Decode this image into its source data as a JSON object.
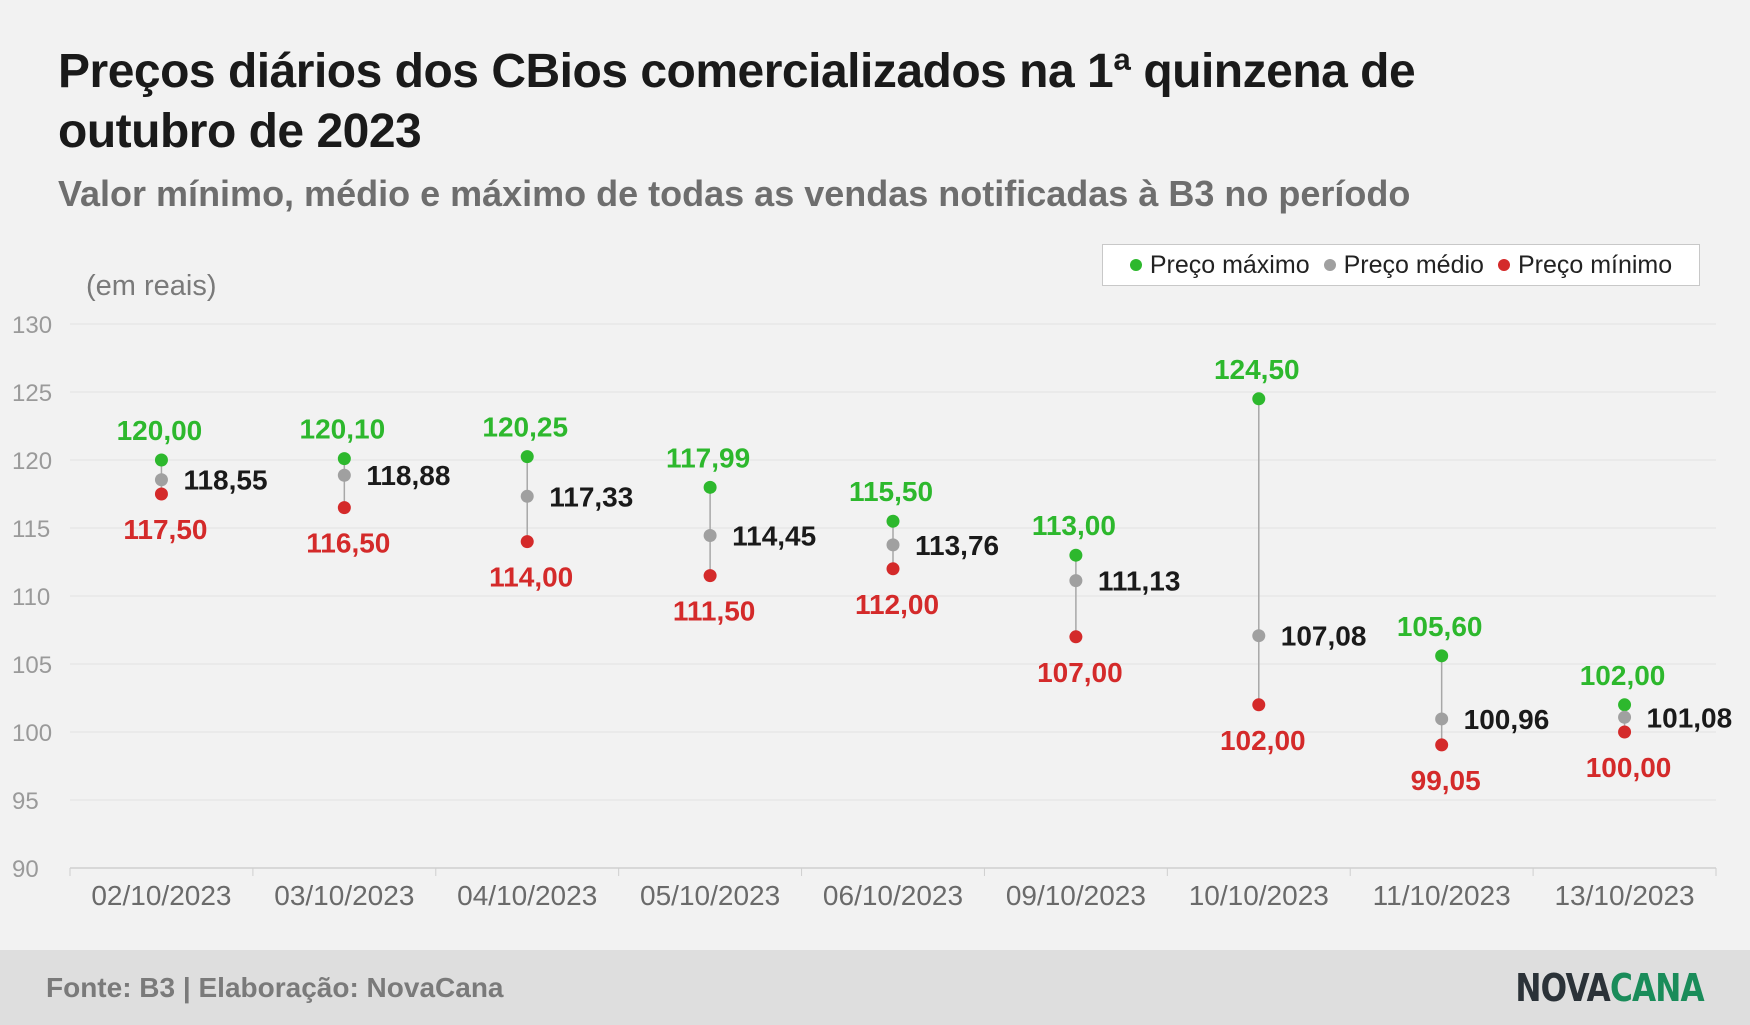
{
  "title": "Preços diários dos CBios comercializados na 1ª quinzena de outubro de 2023",
  "subtitle": "Valor mínimo, médio e máximo de todas as vendas notificadas à B3 no período",
  "unit_label": "(em reais)",
  "legend": [
    {
      "label": "Preço máximo",
      "color": "#2db82d"
    },
    {
      "label": "Preço médio",
      "color": "#a0a0a0"
    },
    {
      "label": "Preço mínimo",
      "color": "#d42a2a"
    }
  ],
  "footer": {
    "source": "Fonte: B3 | Elaboração: NovaCana",
    "logo_part1": "NOVA",
    "logo_part2": "CANA"
  },
  "chart_data": {
    "type": "scatter",
    "categories": [
      "02/10/2023",
      "03/10/2023",
      "04/10/2023",
      "05/10/2023",
      "06/10/2023",
      "09/10/2023",
      "10/10/2023",
      "11/10/2023",
      "13/10/2023"
    ],
    "ylim": [
      90,
      130
    ],
    "yticks": [
      90,
      95,
      100,
      105,
      110,
      115,
      120,
      125,
      130
    ],
    "grid": true,
    "legend_position": "top-right",
    "series": [
      {
        "name": "Preço máximo",
        "color": "#2db82d",
        "values": [
          120.0,
          120.1,
          120.25,
          117.99,
          115.5,
          113.0,
          124.5,
          105.6,
          102.0
        ],
        "labels": [
          "120,00",
          "120,10",
          "120,25",
          "117,99",
          "115,50",
          "113,00",
          "124,50",
          "105,60",
          "102,00"
        ]
      },
      {
        "name": "Preço médio",
        "color": "#a0a0a0",
        "values": [
          118.55,
          118.88,
          117.33,
          114.45,
          113.76,
          111.13,
          107.08,
          100.96,
          101.08
        ],
        "labels": [
          "118,55",
          "118,88",
          "117,33",
          "114,45",
          "113,76",
          "111,13",
          "107,08",
          "100,96",
          "101,08"
        ]
      },
      {
        "name": "Preço mínimo",
        "color": "#d42a2a",
        "values": [
          117.5,
          116.5,
          114.0,
          111.5,
          112.0,
          107.0,
          102.0,
          99.05,
          100.0
        ],
        "labels": [
          "117,50",
          "116,50",
          "114,00",
          "111,50",
          "112,00",
          "107,00",
          "102,00",
          "99,05",
          "100,00"
        ]
      }
    ]
  }
}
